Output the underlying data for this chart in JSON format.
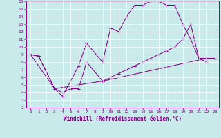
{
  "xlabel": "Windchill (Refroidissement éolien,°C)",
  "bg_color": "#c8eaea",
  "line_color": "#880088",
  "grid_color": "#ffffff",
  "xlim": [
    -0.5,
    23.5
  ],
  "ylim": [
    2,
    16
  ],
  "xticks": [
    0,
    1,
    2,
    3,
    4,
    5,
    6,
    7,
    8,
    9,
    10,
    11,
    12,
    13,
    14,
    15,
    16,
    17,
    18,
    19,
    20,
    21,
    22,
    23
  ],
  "yticks": [
    2,
    3,
    4,
    5,
    6,
    7,
    8,
    9,
    10,
    11,
    12,
    13,
    14,
    15,
    16
  ],
  "curve1_x": [
    0,
    1,
    3,
    4,
    6,
    7,
    9,
    10,
    11,
    12,
    13,
    14,
    15,
    16,
    17,
    18,
    19,
    20,
    21,
    22
  ],
  "curve1_y": [
    9,
    8.8,
    4.5,
    3.5,
    7.5,
    10.5,
    8.0,
    12.5,
    12.0,
    14.0,
    15.5,
    15.5,
    16.0,
    16.0,
    15.5,
    15.5,
    13.0,
    11.0,
    8.5,
    8.0
  ],
  "curve2_x": [
    0,
    1,
    3,
    4,
    5,
    6,
    7,
    9,
    22,
    23
  ],
  "curve2_y": [
    9.0,
    8.8,
    4.5,
    4.0,
    4.5,
    4.5,
    8.0,
    5.5,
    8.5,
    8.5
  ],
  "curve3_x": [
    0,
    3,
    9,
    10,
    11,
    12,
    13,
    14,
    15,
    16,
    17,
    18,
    19,
    20,
    21,
    22,
    23
  ],
  "curve3_y": [
    9.0,
    4.5,
    5.5,
    6.0,
    6.5,
    7.0,
    7.5,
    8.0,
    8.5,
    9.0,
    9.5,
    10.0,
    11.0,
    13.0,
    8.5,
    8.5,
    8.5
  ]
}
